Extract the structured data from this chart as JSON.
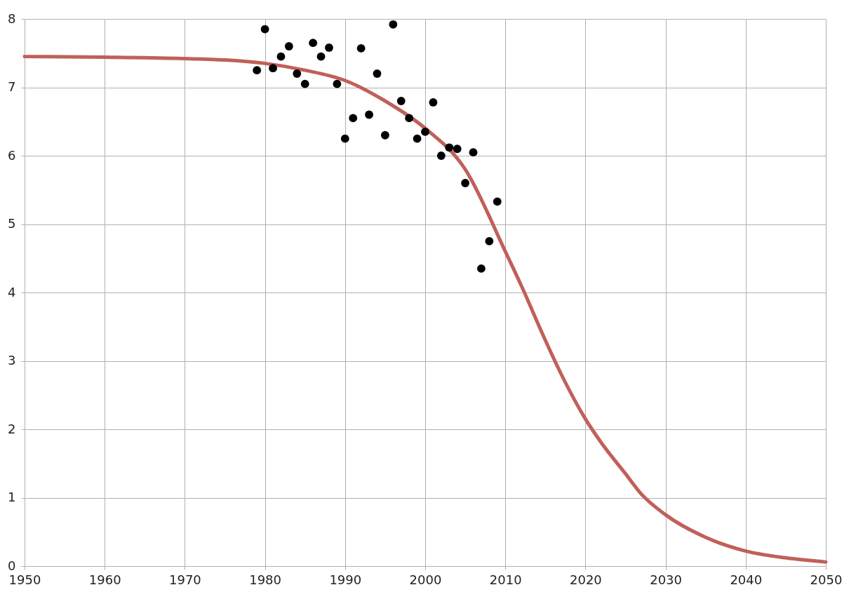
{
  "chart_data": {
    "type": "scatter",
    "xlim": [
      1950,
      2050
    ],
    "xticks": [
      1950,
      1960,
      1970,
      1980,
      1990,
      2000,
      2010,
      2020,
      2030,
      2040,
      2050
    ],
    "ylim": [
      0,
      8
    ],
    "yticks": [
      0,
      1,
      2,
      3,
      4,
      5,
      6,
      7,
      8
    ],
    "grid": true,
    "series": [
      {
        "marker": "circle",
        "color": "#000000",
        "x": [
          1979,
          1980,
          1981,
          1982,
          1983,
          1984,
          1985,
          1986,
          1987,
          1988,
          1989,
          1990,
          1991,
          1992,
          1993,
          1994,
          1995,
          1996,
          1997,
          1998,
          1999,
          2000,
          2001,
          2002,
          2003,
          2004,
          2005,
          2006,
          2007,
          2008,
          2009
        ],
        "values": [
          7.25,
          7.85,
          7.28,
          7.45,
          7.6,
          7.2,
          7.05,
          7.65,
          7.45,
          7.58,
          7.05,
          6.25,
          6.55,
          7.57,
          6.6,
          7.2,
          6.3,
          7.92,
          6.8,
          6.55,
          6.25,
          6.35,
          6.78,
          6.0,
          6.12,
          6.1,
          5.6,
          6.05,
          4.35,
          4.75,
          5.33
        ]
      },
      {
        "type": "line",
        "marker": "none",
        "color": "#c0605a",
        "x": [
          1950,
          1960,
          1970,
          1975,
          1980,
          1985,
          1990,
          1995,
          2000,
          2005,
          2010,
          2012,
          2015,
          2017,
          2020,
          2022,
          2025,
          2027,
          2030,
          2035,
          2040,
          2045,
          2050
        ],
        "values": [
          7.45,
          7.44,
          7.42,
          7.4,
          7.35,
          7.25,
          7.1,
          6.8,
          6.4,
          5.8,
          4.6,
          4.1,
          3.3,
          2.8,
          2.15,
          1.8,
          1.35,
          1.05,
          0.75,
          0.42,
          0.22,
          0.12,
          0.06
        ]
      }
    ]
  }
}
